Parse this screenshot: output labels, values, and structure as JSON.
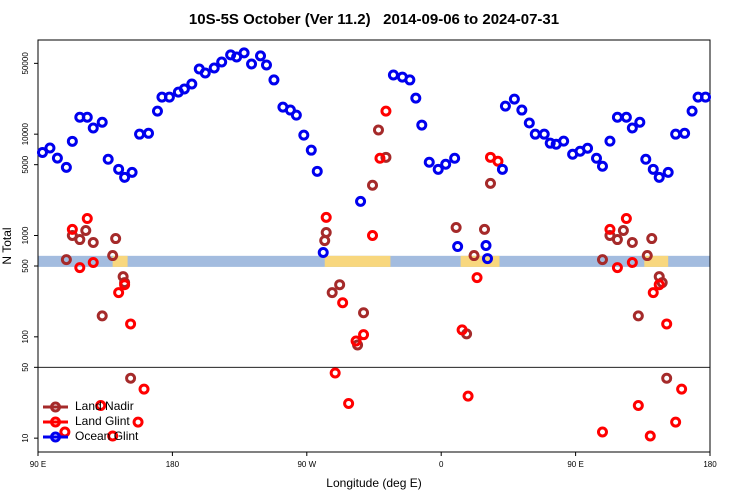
{
  "chart_data": {
    "type": "scatter",
    "title": "10S-5S October (Ver 11.2)   2014-09-06 to 2024-07-31",
    "x_label": "Longitude (deg E)",
    "y_label": "N Total",
    "log_y": true,
    "legend": "lower left",
    "xlim": [
      90,
      540
    ],
    "xticks": [
      {
        "value": 90,
        "label": "90 E"
      },
      180,
      {
        "value": 270,
        "label": "90 W"
      },
      {
        "value": 360,
        "label": "0"
      },
      {
        "value": 450,
        "label": "90 E"
      },
      {
        "value": 540,
        "label": "180"
      }
    ],
    "ylim": [
      7.3,
      85000
    ],
    "yticks": [
      10,
      50,
      100,
      500,
      1000,
      5000,
      10000,
      50000
    ],
    "hline": 50,
    "band": {
      "range": [
        490,
        630
      ],
      "color": "#a3bcdf",
      "land_color": "#f8d77e",
      "land": [
        [
          140,
          150
        ],
        [
          282,
          326
        ],
        [
          373,
          399
        ],
        [
          496,
          512
        ]
      ]
    },
    "series": [
      {
        "name": "Land Nadir",
        "color": "#a52a2a",
        "x": [
          109,
          113,
          118,
          122,
          127,
          140,
          142,
          147,
          148,
          133,
          152,
          282,
          283,
          287,
          292,
          308,
          304,
          314,
          318,
          323,
          370,
          377,
          382,
          389,
          393,
          468,
          473,
          478,
          482,
          488,
          498,
          501,
          506,
          508,
          492,
          511
        ],
        "values": [
          578,
          1000,
          912,
          1120,
          853,
          634,
          933,
          393,
          343,
          161,
          39,
          891,
          1070,
          273,
          327,
          173,
          83,
          3130,
          11000,
          5910,
          1200,
          107,
          634,
          1150,
          3270,
          578,
          1000,
          912,
          1120,
          853,
          634,
          933,
          393,
          343,
          161,
          39
        ]
      },
      {
        "name": "Land Glint",
        "color": "#ff0000",
        "x": [
          113,
          118,
          123,
          127,
          132,
          140,
          144,
          148,
          152,
          157,
          161,
          283,
          289,
          294,
          298,
          303,
          308,
          314,
          319,
          323,
          374,
          378,
          384,
          393,
          398,
          468,
          473,
          478,
          484,
          488,
          492,
          500,
          502,
          506,
          511,
          517,
          521,
          108
        ],
        "values": [
          1150,
          482,
          1470,
          541,
          21,
          10.5,
          273,
          327,
          134,
          14.4,
          30.5,
          1510,
          44,
          217,
          22,
          91,
          105,
          1000,
          5780,
          16900,
          117,
          26,
          384,
          5910,
          5400,
          11.5,
          1150,
          482,
          1470,
          541,
          21,
          10.5,
          273,
          327,
          134,
          14.4,
          30.5,
          11.5
        ]
      },
      {
        "name": "Ocean Glint",
        "color": "#0000ee",
        "x": [
          93,
          98,
          103,
          109,
          113,
          118,
          123,
          127,
          133,
          137,
          144,
          148,
          153,
          158,
          164,
          170,
          173,
          178,
          184,
          188,
          193,
          198,
          202,
          208,
          213,
          219,
          223,
          228,
          233,
          239,
          243,
          248,
          254,
          259,
          263,
          268,
          273,
          277,
          281,
          306,
          328,
          334,
          339,
          343,
          347,
          352,
          358,
          363,
          369,
          371,
          390,
          391,
          401,
          403,
          409,
          414,
          419,
          423,
          429,
          433,
          437,
          442,
          448,
          453,
          458,
          464,
          468,
          473,
          478,
          484,
          488,
          493,
          497,
          502,
          506,
          512,
          517,
          523,
          528,
          532,
          537
        ],
        "values": [
          6600,
          7300,
          5800,
          4700,
          8500,
          14700,
          14700,
          11500,
          13100,
          5650,
          4500,
          3750,
          4200,
          10000,
          10200,
          16900,
          23200,
          23200,
          26000,
          27900,
          31300,
          44000,
          40200,
          45000,
          51600,
          60600,
          57800,
          63400,
          49300,
          59200,
          48200,
          34300,
          18500,
          17300,
          15400,
          9780,
          6950,
          4300,
          679,
          2170,
          38400,
          36600,
          34300,
          22700,
          12300,
          5280,
          4500,
          5050,
          5780,
          778,
          796,
          592,
          4500,
          18900,
          22200,
          17300,
          12900,
          10000,
          10000,
          8150,
          7960,
          8530,
          6340,
          6790,
          7260,
          5780,
          4820,
          8530,
          14700,
          14700,
          11500,
          13100,
          5650,
          4500,
          3750,
          4200,
          10000,
          10200,
          16900,
          23200,
          23200
        ]
      }
    ]
  }
}
